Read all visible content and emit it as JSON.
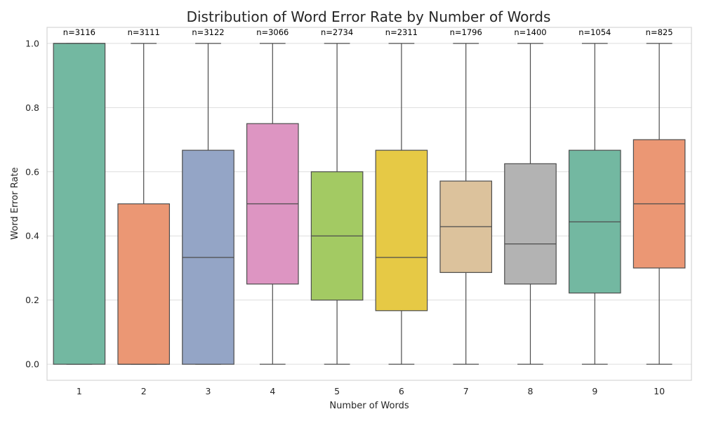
{
  "chart_data": {
    "type": "box",
    "title": "Distribution of Word Error Rate by Number of Words",
    "xlabel": "Number of Words",
    "ylabel": "Word Error Rate",
    "ylim": [
      -0.05,
      1.05
    ],
    "yticks": [
      "0.0",
      "0.2",
      "0.4",
      "0.6",
      "0.8",
      "1.0"
    ],
    "grid": true,
    "categories": [
      "1",
      "2",
      "3",
      "4",
      "5",
      "6",
      "7",
      "8",
      "9",
      "10"
    ],
    "counts": [
      "n=3116",
      "n=3111",
      "n=3122",
      "n=3066",
      "n=2734",
      "n=2311",
      "n=1796",
      "n=1400",
      "n=1054",
      "n=825"
    ],
    "boxes": [
      {
        "min": 0.0,
        "q1": 0.0,
        "median": 1.0,
        "q3": 1.0,
        "max": 1.0,
        "color": "#73b8a1"
      },
      {
        "min": 0.0,
        "q1": 0.0,
        "median": 0.0,
        "q3": 0.5,
        "max": 1.0,
        "color": "#eb9774"
      },
      {
        "min": 0.0,
        "q1": 0.0,
        "median": 0.333,
        "q3": 0.667,
        "max": 1.0,
        "color": "#94a5c6"
      },
      {
        "min": 0.0,
        "q1": 0.25,
        "median": 0.5,
        "q3": 0.75,
        "max": 1.0,
        "color": "#dd95c2"
      },
      {
        "min": 0.0,
        "q1": 0.2,
        "median": 0.4,
        "q3": 0.6,
        "max": 1.0,
        "color": "#a3ca63"
      },
      {
        "min": 0.0,
        "q1": 0.167,
        "median": 0.333,
        "q3": 0.667,
        "max": 1.0,
        "color": "#e6c945"
      },
      {
        "min": 0.0,
        "q1": 0.286,
        "median": 0.429,
        "q3": 0.571,
        "max": 1.0,
        "color": "#dcc29c"
      },
      {
        "min": 0.0,
        "q1": 0.25,
        "median": 0.375,
        "q3": 0.625,
        "max": 1.0,
        "color": "#b3b3b3"
      },
      {
        "min": 0.0,
        "q1": 0.222,
        "median": 0.444,
        "q3": 0.667,
        "max": 1.0,
        "color": "#73b8a1"
      },
      {
        "min": 0.0,
        "q1": 0.3,
        "median": 0.5,
        "q3": 0.7,
        "max": 1.0,
        "color": "#eb9774"
      }
    ]
  }
}
